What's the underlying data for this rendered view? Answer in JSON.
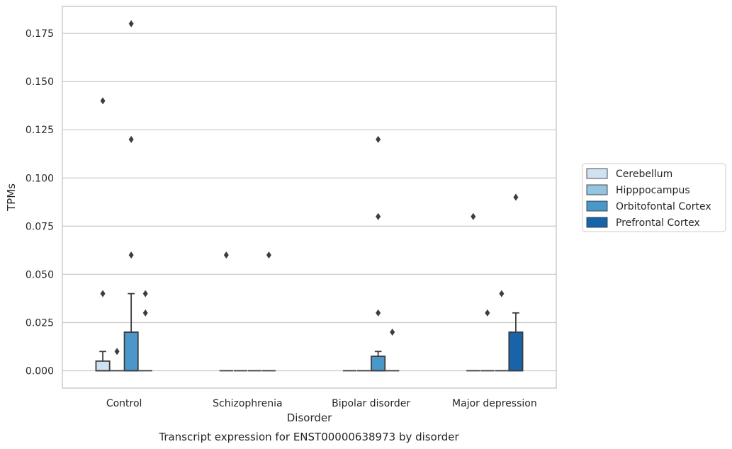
{
  "chart_data": {
    "type": "box",
    "title": "Transcript expression for ENST00000638973 by disorder",
    "xlabel": "Disorder",
    "ylabel": "TPMs",
    "ylim": [
      -0.009,
      0.189
    ],
    "yticks": [
      "0.000",
      "0.025",
      "0.050",
      "0.075",
      "0.100",
      "0.125",
      "0.150",
      "0.175"
    ],
    "categories": [
      "Control",
      "Schizophrenia",
      "Bipolar disorder",
      "Major depression"
    ],
    "grid": "horizontal",
    "legend_position": "right",
    "series": [
      {
        "name": "Cerebellum",
        "color": "#d0e1f2",
        "boxes": [
          {
            "q1": 0,
            "median": 0,
            "q3": 0.005,
            "whisker_low": 0,
            "whisker_high": 0.01,
            "outliers": [
              0.04,
              0.14
            ]
          },
          {
            "q1": 0,
            "median": 0,
            "q3": 0,
            "whisker_low": 0,
            "whisker_high": 0,
            "outliers": [
              0.06
            ]
          },
          {
            "q1": 0,
            "median": 0,
            "q3": 0,
            "whisker_low": 0,
            "whisker_high": 0,
            "outliers": []
          },
          {
            "q1": 0,
            "median": 0,
            "q3": 0,
            "whisker_low": 0,
            "whisker_high": 0,
            "outliers": [
              0.08
            ]
          }
        ]
      },
      {
        "name": "Hipppocampus",
        "color": "#94c4df",
        "boxes": [
          {
            "q1": 0,
            "median": 0,
            "q3": 0,
            "whisker_low": 0,
            "whisker_high": 0,
            "outliers": [
              0.01
            ]
          },
          {
            "q1": 0,
            "median": 0,
            "q3": 0,
            "whisker_low": 0,
            "whisker_high": 0,
            "outliers": []
          },
          {
            "q1": 0,
            "median": 0,
            "q3": 0,
            "whisker_low": 0,
            "whisker_high": 0,
            "outliers": []
          },
          {
            "q1": 0,
            "median": 0,
            "q3": 0,
            "whisker_low": 0,
            "whisker_high": 0,
            "outliers": [
              0.03
            ]
          }
        ]
      },
      {
        "name": "Orbitofontal Cortex",
        "color": "#4a98c9",
        "boxes": [
          {
            "q1": 0,
            "median": 0,
            "q3": 0.02,
            "whisker_low": 0,
            "whisker_high": 0.04,
            "outliers": [
              0.06,
              0.12,
              0.18
            ]
          },
          {
            "q1": 0,
            "median": 0,
            "q3": 0,
            "whisker_low": 0,
            "whisker_high": 0,
            "outliers": []
          },
          {
            "q1": 0,
            "median": 0,
            "q3": 0.0075,
            "whisker_low": 0,
            "whisker_high": 0.01,
            "outliers": [
              0.03,
              0.08,
              0.12
            ]
          },
          {
            "q1": 0,
            "median": 0,
            "q3": 0,
            "whisker_low": 0,
            "whisker_high": 0,
            "outliers": [
              0.04
            ]
          }
        ]
      },
      {
        "name": "Prefrontal Cortex",
        "color": "#1764ab",
        "boxes": [
          {
            "q1": 0,
            "median": 0,
            "q3": 0,
            "whisker_low": 0,
            "whisker_high": 0,
            "outliers": [
              0.03,
              0.04
            ]
          },
          {
            "q1": 0,
            "median": 0,
            "q3": 0,
            "whisker_low": 0,
            "whisker_high": 0,
            "outliers": [
              0.06
            ]
          },
          {
            "q1": 0,
            "median": 0,
            "q3": 0,
            "whisker_low": 0,
            "whisker_high": 0,
            "outliers": [
              0.02
            ]
          },
          {
            "q1": 0,
            "median": 0,
            "q3": 0.02,
            "whisker_low": 0,
            "whisker_high": 0.03,
            "outliers": [
              0.09
            ]
          }
        ]
      }
    ]
  }
}
